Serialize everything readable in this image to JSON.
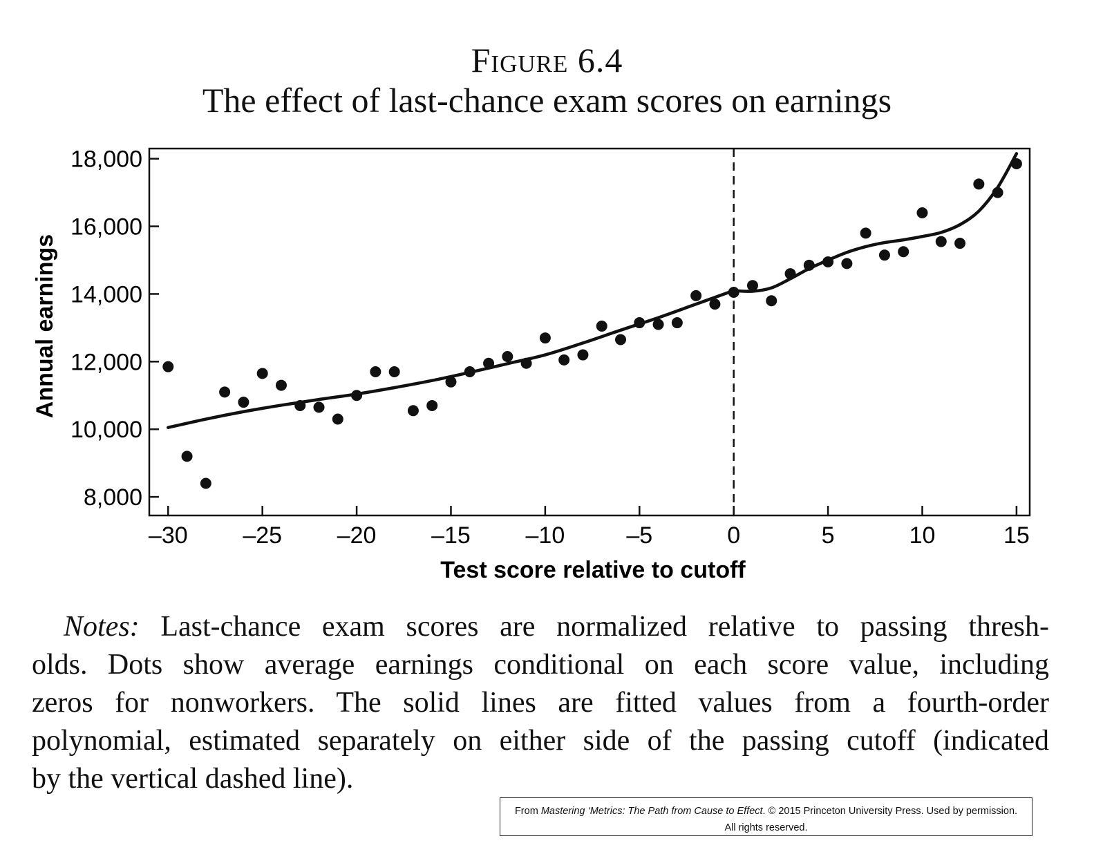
{
  "figure": {
    "label": "Figure 6.4",
    "title": "The effect of last-chance exam scores on earnings"
  },
  "chart_data": {
    "type": "scatter",
    "xlabel": "Test score relative to cutoff",
    "ylabel": "Annual earnings",
    "xlim": [
      -31,
      15.7
    ],
    "ylim": [
      7450,
      18300
    ],
    "x_ticks": [
      -30,
      -25,
      -20,
      -15,
      -10,
      -5,
      0,
      5,
      10,
      15
    ],
    "x_tick_labels": [
      "–30",
      "–25",
      "–20",
      "–15",
      "–10",
      "–5",
      "0",
      "5",
      "10",
      "15"
    ],
    "y_ticks": [
      8000,
      10000,
      12000,
      14000,
      16000,
      18000
    ],
    "y_tick_labels": [
      "8,000",
      "10,000",
      "12,000",
      "14,000",
      "16,000",
      "18,000"
    ],
    "cutoff_x": 0,
    "grid": false,
    "series": [
      {
        "kind": "points",
        "x": [
          -30,
          -29,
          -28,
          -27,
          -26,
          -25,
          -24,
          -23,
          -22,
          -21,
          -20,
          -19,
          -18,
          -17,
          -16,
          -15,
          -14,
          -13,
          -12,
          -11,
          -10,
          -9,
          -8,
          -7,
          -6,
          -5,
          -4,
          -3,
          -2,
          -1,
          0,
          1,
          2,
          3,
          4,
          5,
          6,
          7,
          8,
          9,
          10,
          11,
          12,
          13,
          14,
          15
        ],
        "y": [
          11850,
          9200,
          8400,
          11100,
          10800,
          11650,
          11300,
          10700,
          10650,
          10300,
          11000,
          11700,
          11700,
          10550,
          10700,
          11400,
          11700,
          11950,
          12150,
          11950,
          12700,
          12050,
          12200,
          13050,
          12650,
          13150,
          13100,
          13150,
          13950,
          13700,
          14050,
          14250,
          13800,
          14600,
          14850,
          14950,
          14900,
          15800,
          15150,
          15250,
          16400,
          15550,
          15500,
          17250,
          17000,
          17850
        ]
      },
      {
        "kind": "fit_left",
        "x": [
          -30,
          -28,
          -26,
          -24,
          -22,
          -20,
          -18,
          -16,
          -14,
          -12,
          -10,
          -8,
          -6,
          -4,
          -2,
          0
        ],
        "y": [
          10050,
          10300,
          10520,
          10710,
          10880,
          11040,
          11230,
          11440,
          11680,
          11940,
          12200,
          12550,
          12930,
          13300,
          13700,
          14100
        ]
      },
      {
        "kind": "fit_right",
        "x": [
          0,
          1,
          2,
          3,
          4,
          5,
          6,
          7,
          8,
          9,
          10,
          11,
          12,
          13,
          14,
          15
        ],
        "y": [
          14100,
          14080,
          14180,
          14450,
          14750,
          15000,
          15230,
          15400,
          15520,
          15600,
          15700,
          15820,
          16050,
          16450,
          17150,
          18150
        ]
      }
    ]
  },
  "notes": {
    "label": "Notes:",
    "line1": "Last-chance exam scores are normalized relative to passing thresh-",
    "line2": "olds. Dots show average earnings conditional on each score value, including",
    "line3": "zeros for nonworkers. The solid lines are fitted values from a fourth-order",
    "line4": "polynomial, estimated separately on either side of the passing cutoff (indicated",
    "line5": "by the vertical dashed line)."
  },
  "credit": {
    "prefix": "From ",
    "book": "Mastering ‘Metrics: The Path from Cause to Effect",
    "suffix": ". © 2015 Princeton University Press. Used by permission.",
    "line2": "All rights reserved."
  }
}
